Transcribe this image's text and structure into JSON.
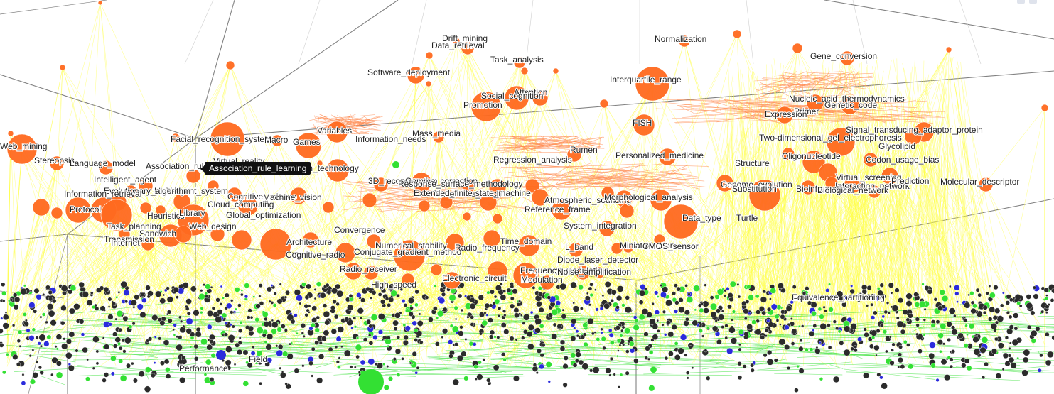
{
  "tooltip": {
    "label": "Association_rule_learning"
  },
  "colors": {
    "topic": "#ff6a1f",
    "link_topic_paper": "#ffff44",
    "link_topic_topic": "#ff8a50",
    "paper_dark": "#2b2b2b",
    "paper_green": "#33e033",
    "paper_blue": "#2b2bdc",
    "link_paper_paper": "#33e033",
    "grid": "#4d4d4d"
  },
  "labels": [
    "Drift_mining",
    "Data_retrieval",
    "Normalization",
    "Task_analysis",
    "Gene_conversion",
    "Software_deployment",
    "Interquartile_range",
    "Attention",
    "Social_cognition",
    "Promotion",
    "Nucleic_acid_thermodynamics",
    "Primer",
    "Genetic_code",
    "Expression",
    "FISH",
    "Signal_transducing_adaptor_protein",
    "Variables",
    "Facial_recognition_system",
    "Mass_media",
    "Information_needs",
    "Macro",
    "Games",
    "Web_mining",
    "Two-dimensional_gel_electrophoresis",
    "Rumen",
    "Regression_analysis",
    "Personalized_medicine",
    "Stereopsis",
    "Virtual_reality",
    "Language_model",
    "Association_rule_learning",
    "Information_technology",
    "Glycolipid",
    "Oligonucleotide",
    "Structure",
    "Codon_usage_bias",
    "Intelligent_agent",
    "3D_reconstruction",
    "Gamma_correction",
    "Response_surface_methodology",
    "Virtual_screening",
    "Multi-agent_system",
    "Evolutionary_algorithm",
    "Genome_evolution",
    "Interaction_network",
    "Prediction",
    "Molecular_descriptor",
    "Information_retrieval",
    "Finite-state_machine",
    "Extended_finite-state_machine",
    "Cognitive_science",
    "Cloud_computing",
    "Machine_vision",
    "Atmospheric_sounding",
    "Bioinformatics",
    "Morphological_analysis",
    "Substitution",
    "Reference_frame",
    "Biological_network",
    "Global_optimization",
    "Data_type",
    "Turtle",
    "Heuristics",
    "Library",
    "System_integration",
    "Task_planning",
    "Web_design",
    "Sandwich",
    "Convergence",
    "Transmission",
    "Architecture",
    "Internet",
    "Protocol",
    "Numerical_stability",
    "Miniaturization",
    "CMOS_sensor",
    "Conjugate_gradient_method",
    "Time_domain",
    "Cognitive_radio",
    "Radio_frequency",
    "L_band",
    "Diode_laser_detector",
    "Radio_receiver",
    "Frequency_modulation",
    "Electronic_circuit",
    "Noise_amplification",
    "High_speed",
    "Modulation",
    "Equivalence_partitioning",
    "Performance",
    "Field"
  ]
}
